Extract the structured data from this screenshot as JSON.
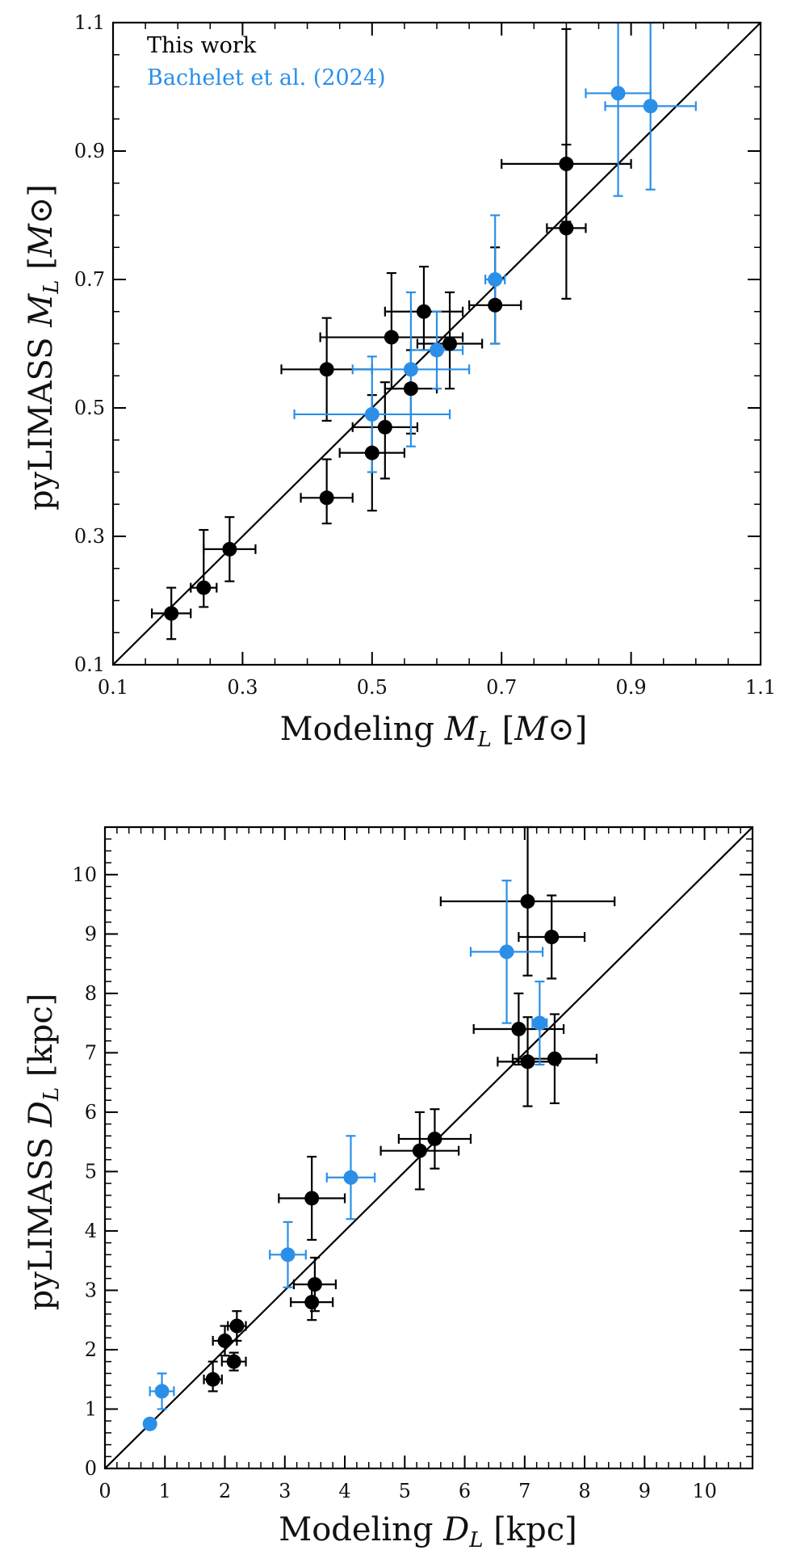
{
  "chart_data": [
    {
      "type": "scatter",
      "id": "mass",
      "xlabel": "Modeling M_L [M⊙]",
      "ylabel": "pyLIMASS M_L [M⊙]",
      "xlim": [
        0.1,
        1.1
      ],
      "ylim": [
        0.1,
        1.1
      ],
      "major_ticks": [
        0.1,
        0.3,
        0.5,
        0.7,
        0.9,
        1.1
      ],
      "minor_step": 0.05,
      "tick_labels_x": [
        "0.1",
        "0.3",
        "0.5",
        "0.7",
        "0.9",
        "1.1"
      ],
      "tick_labels_y": [
        "0.1",
        "0.3",
        "0.5",
        "0.7",
        "0.9",
        "1.1"
      ],
      "label_parts": {
        "x_prefix": "Modeling ",
        "y_prefix": "pyLIMASS ",
        "symbol": "M",
        "subscript": "L",
        "unit": "M⊙"
      },
      "one_to_one_line": true,
      "legend": [
        {
          "label": "This work",
          "color": "#000000"
        },
        {
          "label": "Bachelet et al. (2024)",
          "color": "#2b8fe8"
        }
      ],
      "series": [
        {
          "name": "This work",
          "color": "#000000",
          "points": [
            {
              "x": 0.19,
              "y": 0.18,
              "xerr": 0.03,
              "yerr": 0.04
            },
            {
              "x": 0.24,
              "y": 0.22,
              "xerr": 0.02,
              "yerr": [
                0.03,
                0.09
              ]
            },
            {
              "x": 0.28,
              "y": 0.28,
              "xerr": 0.04,
              "yerr": 0.05
            },
            {
              "x": 0.43,
              "y": 0.36,
              "xerr": 0.04,
              "yerr": [
                0.04,
                0.06
              ]
            },
            {
              "x": 0.43,
              "y": 0.56,
              "xerr": 0.07,
              "yerr": [
                0.08,
                0.08
              ]
            },
            {
              "x": 0.5,
              "y": 0.43,
              "xerr": 0.05,
              "yerr": [
                0.09,
                0.09
              ]
            },
            {
              "x": 0.52,
              "y": 0.47,
              "xerr": 0.05,
              "yerr": [
                0.08,
                0.07
              ]
            },
            {
              "x": 0.53,
              "y": 0.61,
              "xerr": 0.11,
              "yerr": [
                0.08,
                0.1
              ]
            },
            {
              "x": 0.56,
              "y": 0.53,
              "xerr": 0.04,
              "yerr": [
                0.07,
                0.06
              ]
            },
            {
              "x": 0.58,
              "y": 0.65,
              "xerr": 0.06,
              "yerr": [
                0.06,
                0.07
              ]
            },
            {
              "x": 0.62,
              "y": 0.6,
              "xerr": 0.05,
              "yerr": [
                0.07,
                0.08
              ]
            },
            {
              "x": 0.69,
              "y": 0.66,
              "xerr": 0.04,
              "yerr": [
                0.06,
                0.09
              ]
            },
            {
              "x": 0.8,
              "y": 0.78,
              "xerr": 0.03,
              "yerr": [
                0.11,
                0.13
              ]
            },
            {
              "x": 0.8,
              "y": 0.88,
              "xerr": 0.1,
              "yerr": [
                0.09,
                0.21
              ]
            }
          ]
        },
        {
          "name": "Bachelet et al. (2024)",
          "color": "#2b8fe8",
          "points": [
            {
              "x": 0.5,
              "y": 0.49,
              "xerr": 0.12,
              "yerr": [
                0.09,
                0.09
              ]
            },
            {
              "x": 0.56,
              "y": 0.56,
              "xerr": 0.09,
              "yerr": [
                0.12,
                0.12
              ]
            },
            {
              "x": 0.6,
              "y": 0.59,
              "xerr": 0.04,
              "yerr": [
                0.06,
                0.06
              ]
            },
            {
              "x": 0.69,
              "y": 0.7,
              "xerr": 0.015,
              "yerr": [
                0.1,
                0.1
              ]
            },
            {
              "x": 0.88,
              "y": 0.99,
              "xerr": 0.05,
              "yerr": [
                0.16,
                0.14
              ]
            },
            {
              "x": 0.93,
              "y": 0.97,
              "xerr": 0.07,
              "yerr": [
                0.13,
                0.13
              ]
            }
          ]
        }
      ]
    },
    {
      "type": "scatter",
      "id": "distance",
      "xlabel": "Modeling D_L [kpc]",
      "ylabel": "pyLIMASS D_L [kpc]",
      "xlim": [
        0,
        10.8
      ],
      "ylim": [
        0,
        10.8
      ],
      "major_ticks": [
        0,
        1,
        2,
        3,
        4,
        5,
        6,
        7,
        8,
        9,
        10
      ],
      "minor_step": 0.2,
      "tick_labels_x": [
        "0",
        "1",
        "2",
        "3",
        "4",
        "5",
        "6",
        "7",
        "8",
        "9",
        "10"
      ],
      "tick_labels_y": [
        "0",
        "1",
        "2",
        "3",
        "4",
        "5",
        "6",
        "7",
        "8",
        "9",
        "10"
      ],
      "label_parts": {
        "x_prefix": "Modeling ",
        "y_prefix": "pyLIMASS ",
        "symbol": "D",
        "subscript": "L",
        "unit": "kpc"
      },
      "one_to_one_line": true,
      "series": [
        {
          "name": "This work",
          "color": "#000000",
          "points": [
            {
              "x": 1.8,
              "y": 1.5,
              "xerr": 0.15,
              "yerr": [
                0.2,
                0.3
              ]
            },
            {
              "x": 2.15,
              "y": 1.8,
              "xerr": 0.2,
              "yerr": 0.15
            },
            {
              "x": 2.0,
              "y": 2.15,
              "xerr": 0.2,
              "yerr": 0.25
            },
            {
              "x": 2.2,
              "y": 2.4,
              "xerr": 0.15,
              "yerr": 0.25
            },
            {
              "x": 3.45,
              "y": 2.8,
              "xerr": 0.35,
              "yerr": 0.3
            },
            {
              "x": 3.5,
              "y": 3.1,
              "xerr": 0.35,
              "yerr": 0.45
            },
            {
              "x": 3.45,
              "y": 4.55,
              "xerr": 0.55,
              "yerr": 0.7
            },
            {
              "x": 5.25,
              "y": 5.35,
              "xerr": 0.65,
              "yerr": 0.65
            },
            {
              "x": 5.5,
              "y": 5.55,
              "xerr": 0.6,
              "yerr": 0.5
            },
            {
              "x": 7.05,
              "y": 6.85,
              "xerr": 0.5,
              "yerr": 0.75
            },
            {
              "x": 6.9,
              "y": 7.4,
              "xerr": 0.75,
              "yerr": 0.6
            },
            {
              "x": 7.5,
              "y": 6.9,
              "xerr": 0.7,
              "yerr": 0.75
            },
            {
              "x": 7.45,
              "y": 8.95,
              "xerr": 0.55,
              "yerr": 0.7
            },
            {
              "x": 7.05,
              "y": 9.55,
              "xerr": 1.45,
              "yerr": [
                1.25,
                1.25
              ]
            }
          ]
        },
        {
          "name": "Bachelet et al. (2024)",
          "color": "#2b8fe8",
          "points": [
            {
              "x": 0.75,
              "y": 0.75,
              "xerr": 0,
              "yerr": 0
            },
            {
              "x": 0.95,
              "y": 1.3,
              "xerr": 0.2,
              "yerr": 0.3
            },
            {
              "x": 3.05,
              "y": 3.6,
              "xerr": 0.3,
              "yerr": 0.55
            },
            {
              "x": 4.1,
              "y": 4.9,
              "xerr": 0.4,
              "yerr": 0.7
            },
            {
              "x": 6.7,
              "y": 8.7,
              "xerr": 0.6,
              "yerr": [
                1.2,
                1.2
              ]
            },
            {
              "x": 7.25,
              "y": 7.5,
              "xerr": 0.12,
              "yerr": 0.7
            }
          ]
        }
      ]
    }
  ]
}
